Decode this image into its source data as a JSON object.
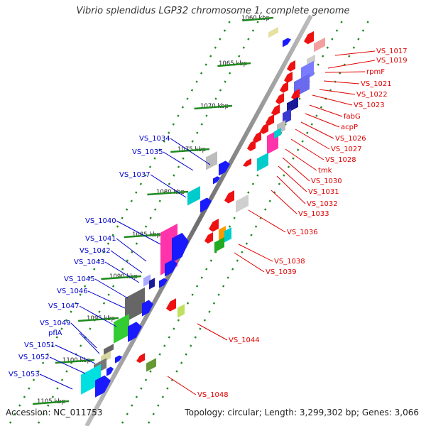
{
  "title": "Vibrio splendidus LGP32 chromosome 1, complete genome",
  "footer": {
    "accession": "Accession: NC_011753",
    "summary": "Topology: circular; Length: 3,299,302 bp; Genes: 3,066"
  },
  "colors": {
    "forward_label": "#0000cc",
    "reverse_label": "#e00000",
    "backbone": "#8a8a8a",
    "tick": "#1f8a1f"
  },
  "kbp_ticks": [
    "1060 kbp",
    "1065 kbp",
    "1070 kbp",
    "1075 kbp",
    "1080 kbp",
    "1085 kbp",
    "1090 kbp",
    "1095 kbp",
    "1100 kbp",
    "1105 kbp"
  ],
  "forward_labels": [
    "VS_1034",
    "VS_1035",
    "VS_1037",
    "VS_1040",
    "VS_1041",
    "VS_1042",
    "VS_1043",
    "VS_1045",
    "VS_1046",
    "VS_1047",
    "VS_1049",
    "pflA",
    "VS_1051",
    "VS_1052",
    "VS_1053"
  ],
  "reverse_labels": [
    "VS_1017",
    "VS_1019",
    "rpmF",
    "VS_1021",
    "VS_1022",
    "VS_1023",
    "fabG",
    "acpP",
    "VS_1026",
    "VS_1027",
    "VS_1028",
    "tmk",
    "VS_1030",
    "VS_1031",
    "VS_1032",
    "VS_1033",
    "VS_1036",
    "VS_1038",
    "VS_1039",
    "VS_1044",
    "VS_1048"
  ]
}
